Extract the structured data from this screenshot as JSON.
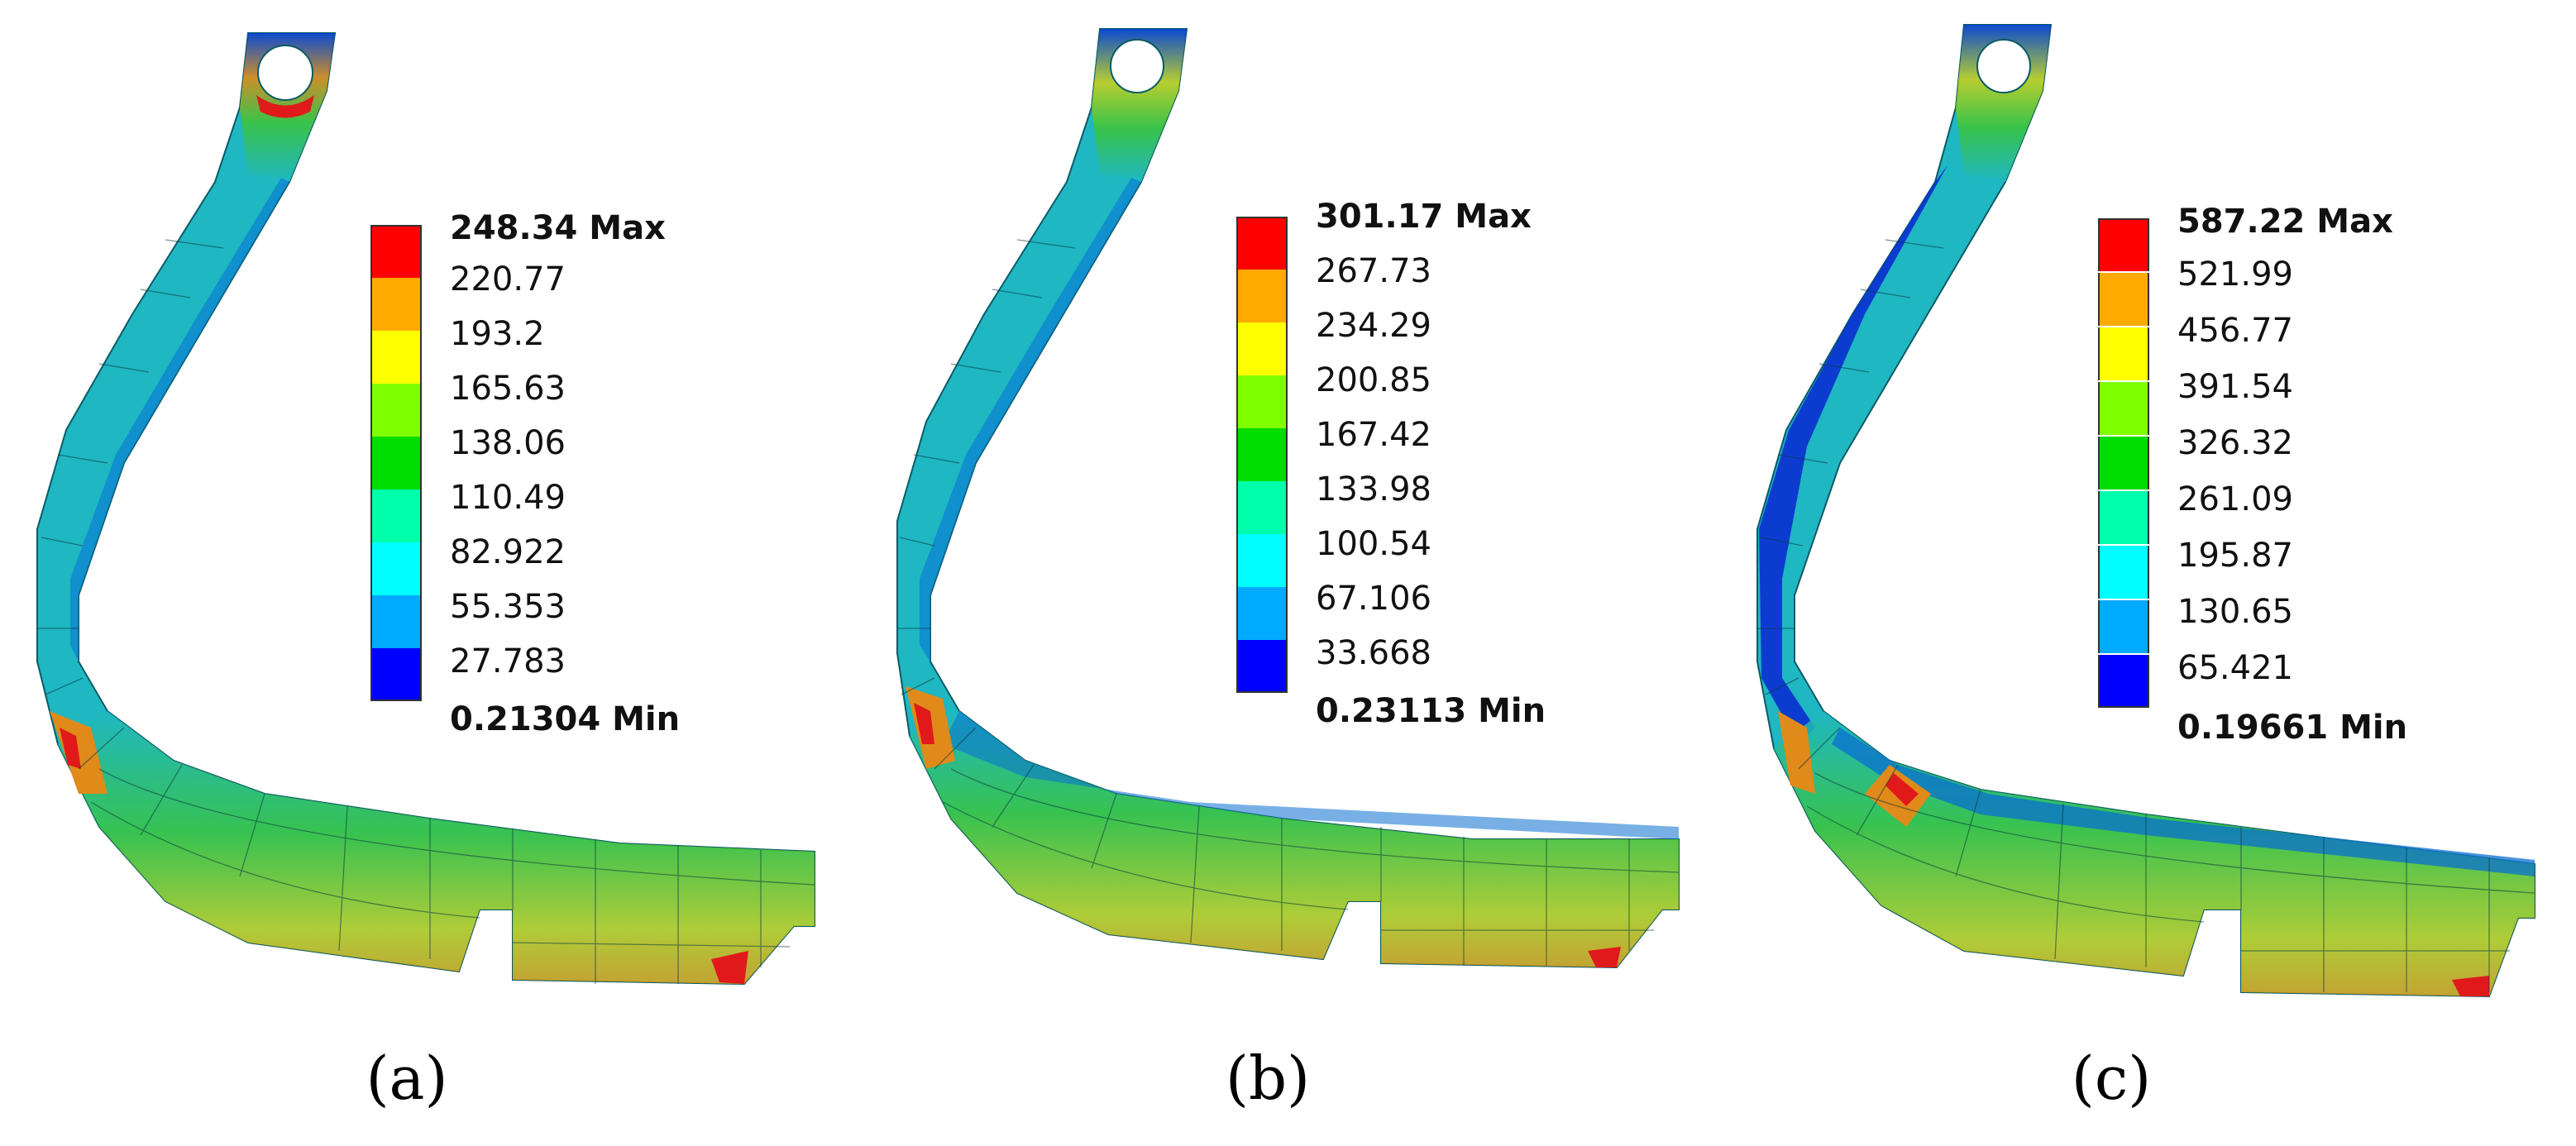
{
  "panels": [
    {
      "caption": "(a)",
      "legend": {
        "max_label": "248.34 Max",
        "min_label": "0.21304 Min",
        "levels": [
          "220.77",
          "193.2",
          "165.63",
          "138.06",
          "110.49",
          "82.922",
          "55.353",
          "27.783"
        ]
      }
    },
    {
      "caption": "(b)",
      "legend": {
        "max_label": "301.17 Max",
        "min_label": "0.23113 Min",
        "levels": [
          "267.73",
          "234.29",
          "200.85",
          "167.42",
          "133.98",
          "100.54",
          "67.106",
          "33.668"
        ]
      }
    },
    {
      "caption": "(c)",
      "legend": {
        "max_label": "587.22 Max",
        "min_label": "0.19661 Min",
        "levels": [
          "521.99",
          "456.77",
          "391.54",
          "326.32",
          "261.09",
          "195.87",
          "130.65",
          "65.421"
        ]
      }
    }
  ],
  "colors": {
    "scale": [
      "#ff0000",
      "#ffaa00",
      "#ffff00",
      "#80ff00",
      "#00dd00",
      "#00ffaa",
      "#00ffff",
      "#00aaff",
      "#0000ff"
    ],
    "body_teal": "#1fb7c2",
    "body_blue_edge": "#0a3fd0",
    "body_green": "#3cc43c",
    "body_yellow": "#c8d020",
    "body_orange": "#e08a1a",
    "hot_red": "#e01a1a"
  }
}
